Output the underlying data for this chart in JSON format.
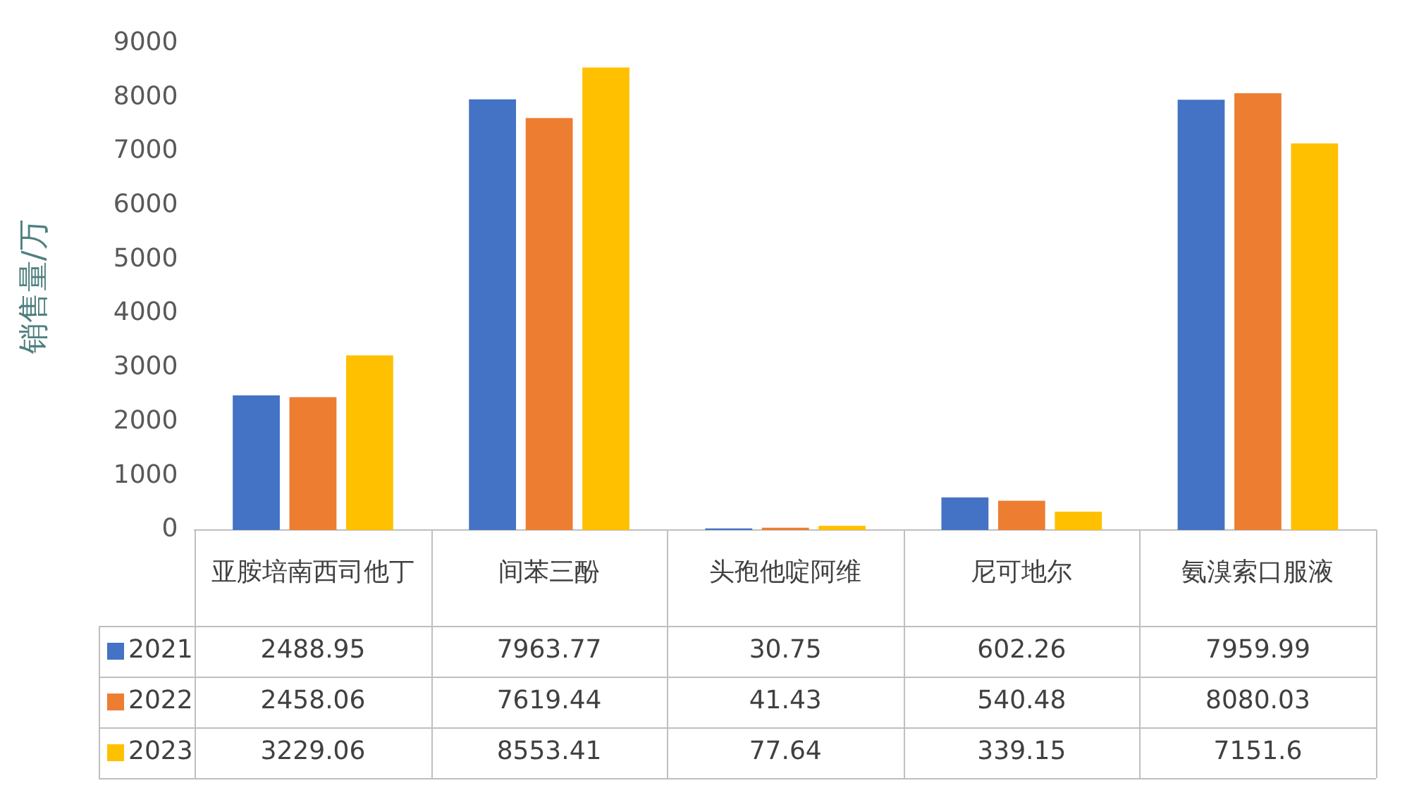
{
  "chart_data": {
    "type": "bar",
    "ylabel": "销售量/万",
    "categories": [
      "亚胺培南西司他丁",
      "间苯三酚",
      "头孢他啶阿维",
      "尼可地尔",
      "氨溴索口服液"
    ],
    "series": [
      {
        "name": "2021",
        "color": "#4472c4",
        "values": [
          2488.95,
          7963.77,
          30.75,
          602.26,
          7959.99
        ]
      },
      {
        "name": "2022",
        "color": "#ed7d31",
        "values": [
          2458.06,
          7619.44,
          41.43,
          540.48,
          8080.03
        ]
      },
      {
        "name": "2023",
        "color": "#ffc000",
        "values": [
          3229.06,
          8553.41,
          77.64,
          339.15,
          7151.6
        ]
      }
    ],
    "ylim": [
      0,
      9000
    ],
    "yticks": [
      0,
      1000,
      2000,
      3000,
      4000,
      5000,
      6000,
      7000,
      8000,
      9000
    ],
    "grid": false,
    "legend": "bottom",
    "data_labels": true
  }
}
